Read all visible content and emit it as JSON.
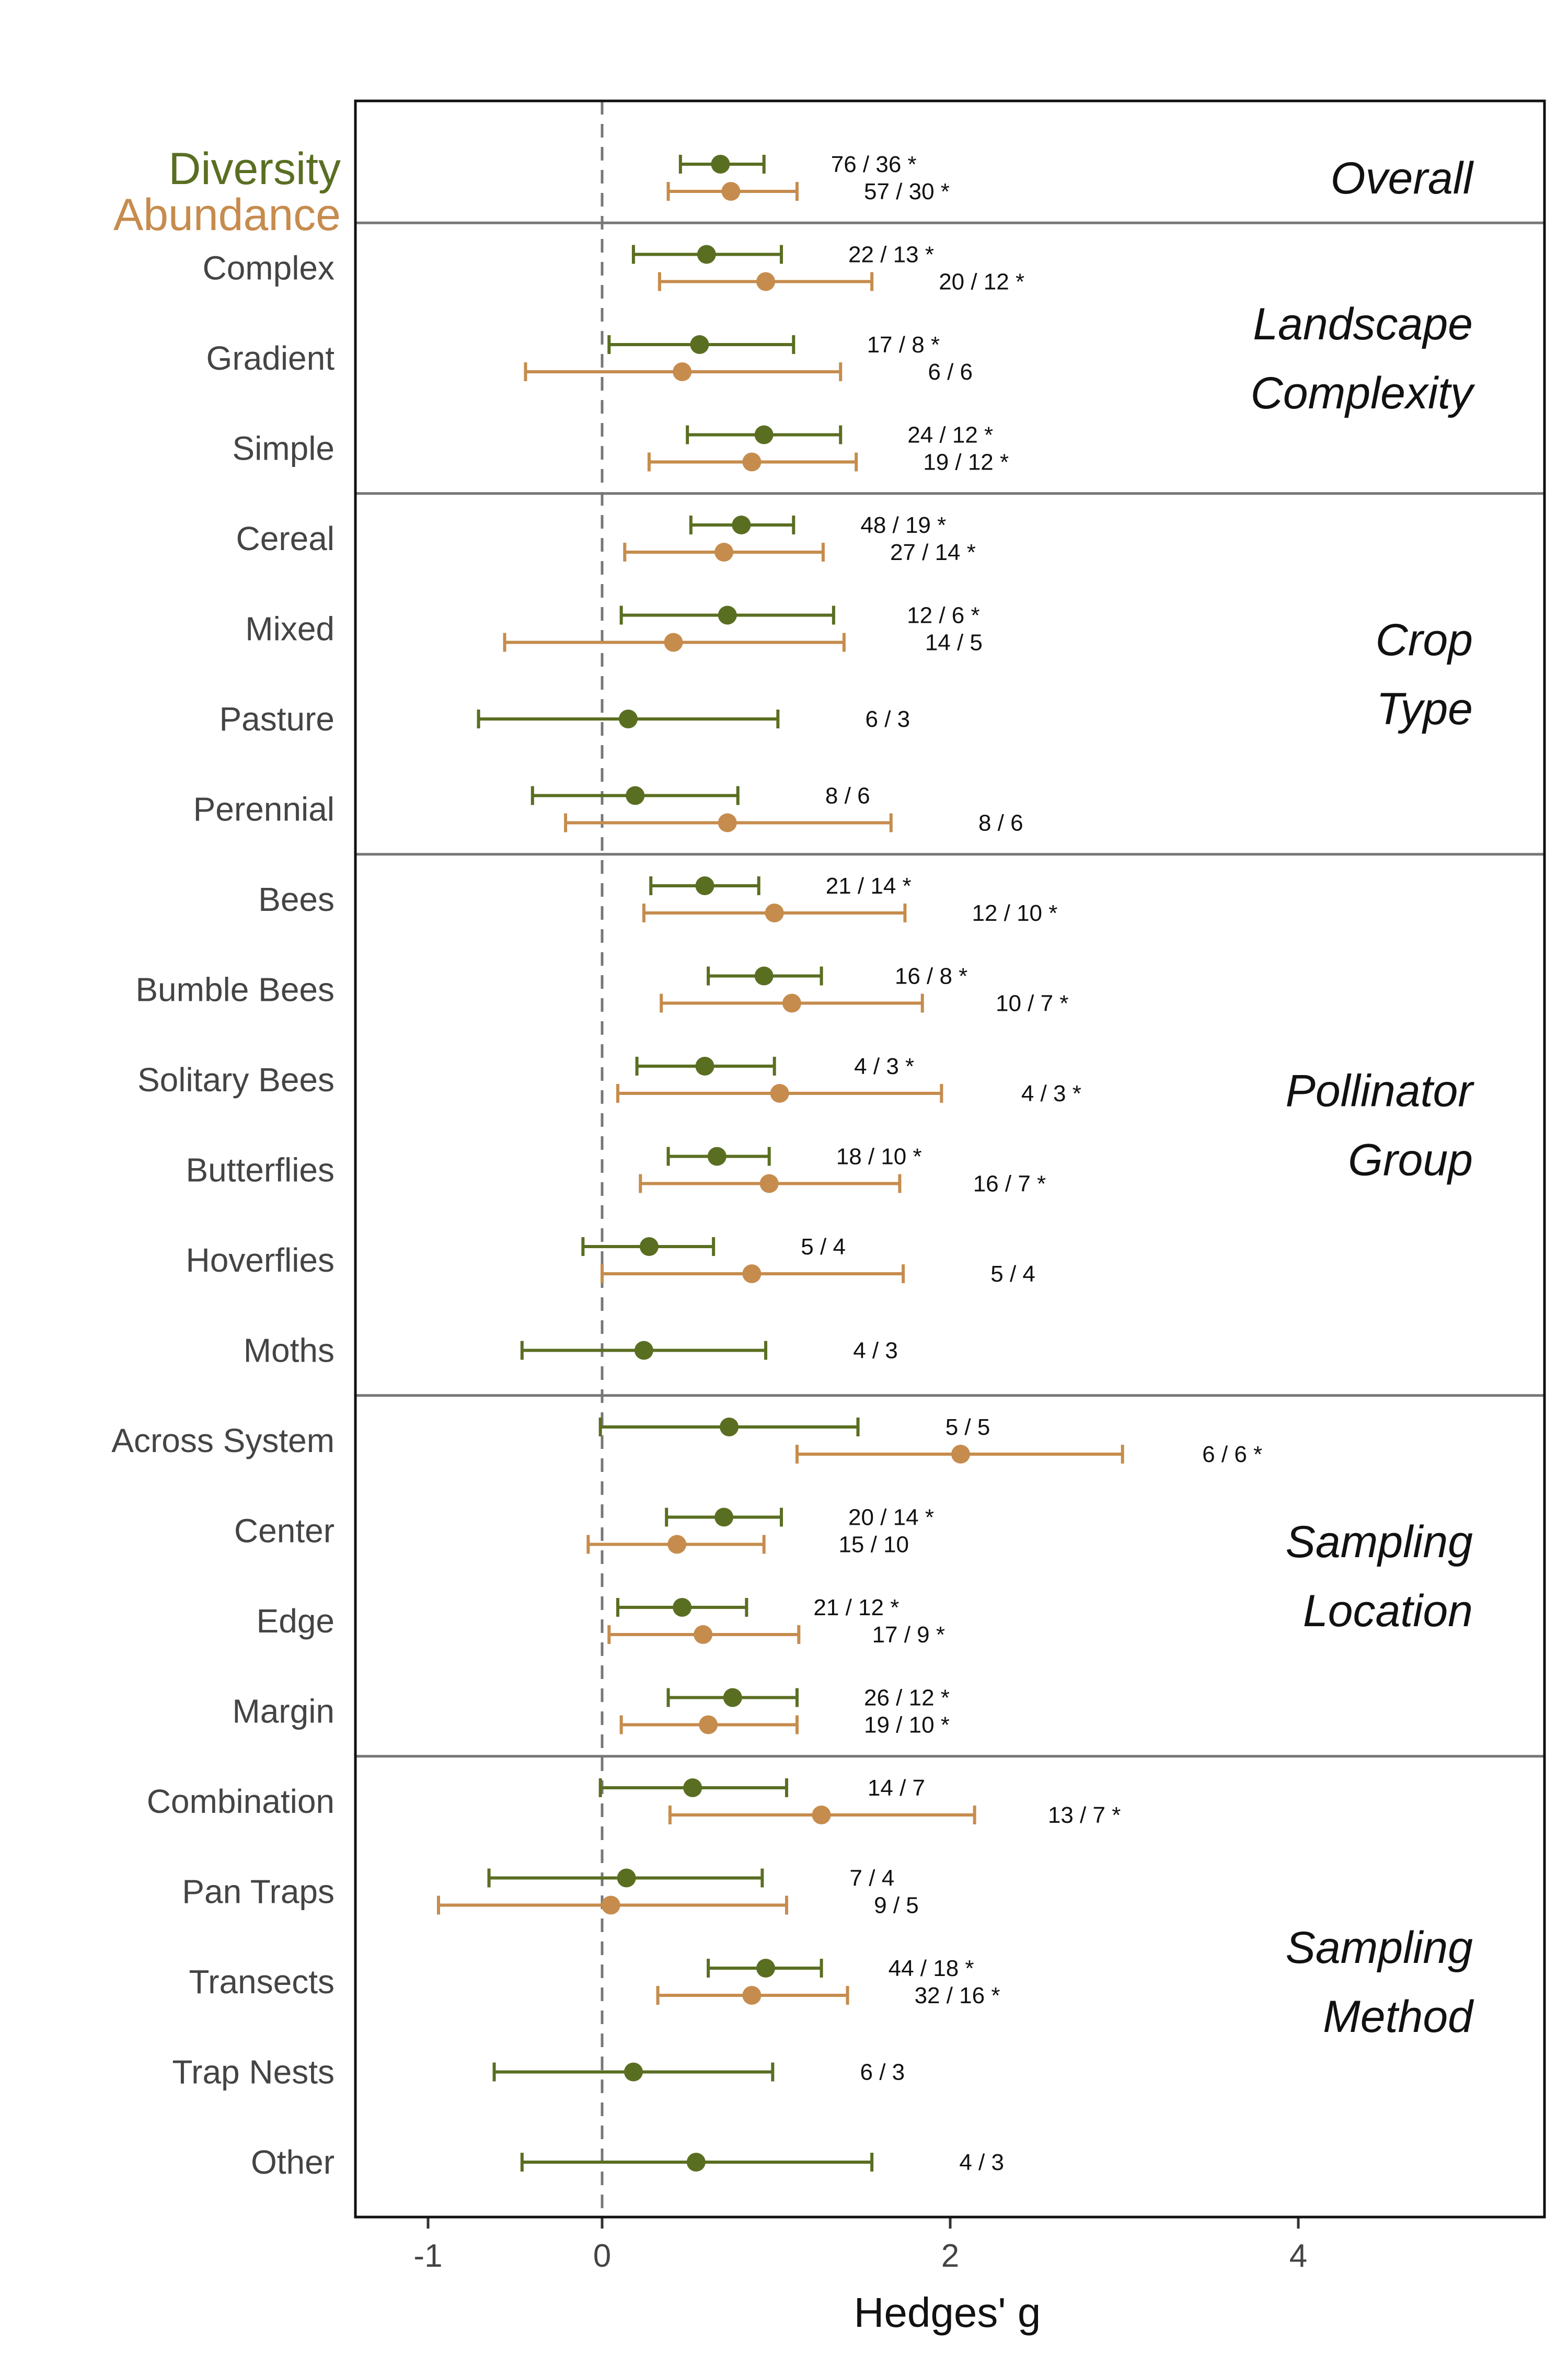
{
  "chart_data": {
    "type": "forest",
    "xlabel": "Hedges' g",
    "xlim": [
      -1.5,
      5.5
    ],
    "x_ticks": [
      -1,
      0,
      2,
      4
    ],
    "reference_line": 0,
    "legend": [
      {
        "name": "Diversity",
        "color": "#5a6e22"
      },
      {
        "name": "Abundance",
        "color": "#c68c4d"
      }
    ],
    "groups": [
      {
        "title_lines": [
          "Overall"
        ],
        "rows": [
          {
            "label": "",
            "diversity": {
              "mean": 0.68,
              "low": 0.45,
              "high": 0.93,
              "n": "76 / 36 *"
            },
            "abundance": {
              "mean": 0.74,
              "low": 0.38,
              "high": 1.12,
              "n": "57 / 30 *"
            }
          }
        ]
      },
      {
        "title_lines": [
          "Landscape",
          "Complexity"
        ],
        "rows": [
          {
            "label": "Complex",
            "diversity": {
              "mean": 0.6,
              "low": 0.18,
              "high": 1.03,
              "n": "22 / 13 *"
            },
            "abundance": {
              "mean": 0.94,
              "low": 0.33,
              "high": 1.55,
              "n": "20 / 12 *"
            }
          },
          {
            "label": "Gradient",
            "diversity": {
              "mean": 0.56,
              "low": 0.04,
              "high": 1.1,
              "n": "17 / 8 *"
            },
            "abundance": {
              "mean": 0.46,
              "low": -0.44,
              "high": 1.37,
              "n": "6 / 6"
            }
          },
          {
            "label": "Simple",
            "diversity": {
              "mean": 0.93,
              "low": 0.49,
              "high": 1.37,
              "n": "24 / 12 *"
            },
            "abundance": {
              "mean": 0.86,
              "low": 0.27,
              "high": 1.46,
              "n": "19 / 12 *"
            }
          }
        ]
      },
      {
        "title_lines": [
          "Crop",
          "Type"
        ],
        "rows": [
          {
            "label": "Cereal",
            "diversity": {
              "mean": 0.8,
              "low": 0.51,
              "high": 1.1,
              "n": "48 / 19 *"
            },
            "abundance": {
              "mean": 0.7,
              "low": 0.13,
              "high": 1.27,
              "n": "27 / 14 *"
            }
          },
          {
            "label": "Mixed",
            "diversity": {
              "mean": 0.72,
              "low": 0.11,
              "high": 1.33,
              "n": "12 / 6 *"
            },
            "abundance": {
              "mean": 0.41,
              "low": -0.56,
              "high": 1.39,
              "n": "14 / 5"
            }
          },
          {
            "label": "Pasture",
            "diversity": {
              "mean": 0.15,
              "low": -0.71,
              "high": 1.01,
              "n": "6 / 3"
            },
            "abundance": null
          },
          {
            "label": "Perennial",
            "diversity": {
              "mean": 0.19,
              "low": -0.4,
              "high": 0.78,
              "n": "8 / 6"
            },
            "abundance": {
              "mean": 0.72,
              "low": -0.21,
              "high": 1.66,
              "n": "8 / 6"
            }
          }
        ]
      },
      {
        "title_lines": [
          "Pollinator",
          "Group"
        ],
        "rows": [
          {
            "label": "Bees",
            "diversity": {
              "mean": 0.59,
              "low": 0.28,
              "high": 0.9,
              "n": "21 / 14 *"
            },
            "abundance": {
              "mean": 0.99,
              "low": 0.24,
              "high": 1.74,
              "n": "12 / 10 *"
            }
          },
          {
            "label": "Bumble Bees",
            "diversity": {
              "mean": 0.93,
              "low": 0.61,
              "high": 1.26,
              "n": "16 / 8 *"
            },
            "abundance": {
              "mean": 1.09,
              "low": 0.34,
              "high": 1.84,
              "n": "10 / 7 *"
            }
          },
          {
            "label": "Solitary Bees",
            "diversity": {
              "mean": 0.59,
              "low": 0.2,
              "high": 0.99,
              "n": "4 / 3 *"
            },
            "abundance": {
              "mean": 1.02,
              "low": 0.09,
              "high": 1.95,
              "n": "4 / 3 *"
            }
          },
          {
            "label": "Butterflies",
            "diversity": {
              "mean": 0.66,
              "low": 0.38,
              "high": 0.96,
              "n": "18 / 10 *"
            },
            "abundance": {
              "mean": 0.96,
              "low": 0.22,
              "high": 1.71,
              "n": "16 / 7 *"
            }
          },
          {
            "label": "Hoverflies",
            "diversity": {
              "mean": 0.27,
              "low": -0.11,
              "high": 0.64,
              "n": "5 / 4"
            },
            "abundance": {
              "mean": 0.86,
              "low": 0.0,
              "high": 1.73,
              "n": "5 / 4"
            }
          },
          {
            "label": "Moths",
            "diversity": {
              "mean": 0.24,
              "low": -0.46,
              "high": 0.94,
              "n": "4 / 3"
            },
            "abundance": null
          }
        ]
      },
      {
        "title_lines": [
          "Sampling",
          "Location"
        ],
        "rows": [
          {
            "label": "Across System",
            "diversity": {
              "mean": 0.73,
              "low": -0.01,
              "high": 1.47,
              "n": "5 / 5"
            },
            "abundance": {
              "mean": 2.06,
              "low": 1.12,
              "high": 2.99,
              "n": "6 / 6 *"
            }
          },
          {
            "label": "Center",
            "diversity": {
              "mean": 0.7,
              "low": 0.37,
              "high": 1.03,
              "n": "20 / 14 *"
            },
            "abundance": {
              "mean": 0.43,
              "low": -0.08,
              "high": 0.93,
              "n": "15 / 10"
            }
          },
          {
            "label": "Edge",
            "diversity": {
              "mean": 0.46,
              "low": 0.09,
              "high": 0.83,
              "n": "21 / 12 *"
            },
            "abundance": {
              "mean": 0.58,
              "low": 0.04,
              "high": 1.13,
              "n": "17 / 9 *"
            }
          },
          {
            "label": "Margin",
            "diversity": {
              "mean": 0.75,
              "low": 0.38,
              "high": 1.12,
              "n": "26 / 12 *"
            },
            "abundance": {
              "mean": 0.61,
              "low": 0.11,
              "high": 1.12,
              "n": "19 / 10 *"
            }
          }
        ]
      },
      {
        "title_lines": [
          "Sampling",
          "Method"
        ],
        "rows": [
          {
            "label": "Combination",
            "diversity": {
              "mean": 0.52,
              "low": -0.01,
              "high": 1.06,
              "n": "14 / 7"
            },
            "abundance": {
              "mean": 1.26,
              "low": 0.39,
              "high": 2.14,
              "n": "13 / 7 *"
            }
          },
          {
            "label": "Pan Traps",
            "diversity": {
              "mean": 0.14,
              "low": -0.65,
              "high": 0.92,
              "n": "7 / 4"
            },
            "abundance": {
              "mean": 0.05,
              "low": -0.94,
              "high": 1.06,
              "n": "9 / 5"
            }
          },
          {
            "label": "Transects",
            "diversity": {
              "mean": 0.94,
              "low": 0.61,
              "high": 1.26,
              "n": "44 / 18 *"
            },
            "abundance": {
              "mean": 0.86,
              "low": 0.32,
              "high": 1.41,
              "n": "32 / 16 *"
            }
          },
          {
            "label": "Trap Nests",
            "diversity": {
              "mean": 0.18,
              "low": -0.62,
              "high": 0.98,
              "n": "6 / 3"
            },
            "abundance": null
          },
          {
            "label": "Other",
            "diversity": {
              "mean": 0.54,
              "low": -0.46,
              "high": 1.55,
              "n": "4 / 3"
            },
            "abundance": null
          }
        ]
      }
    ]
  }
}
